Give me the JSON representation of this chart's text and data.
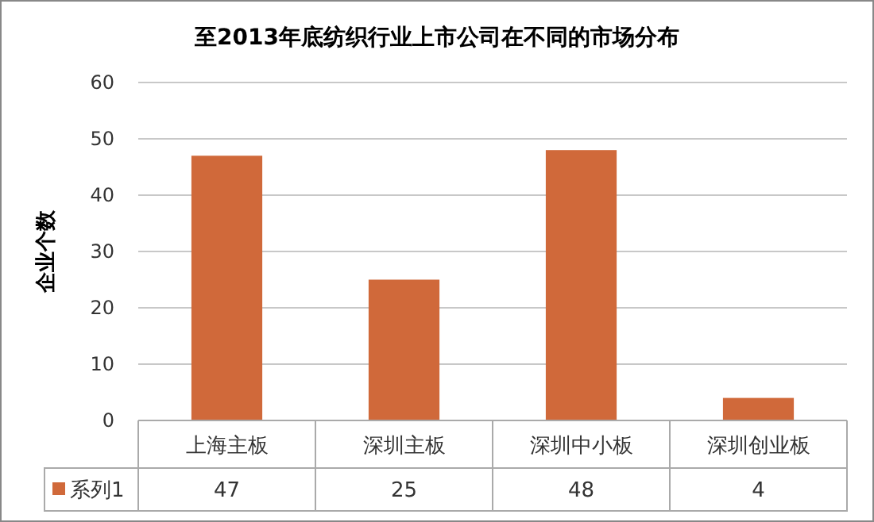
{
  "chart_data": {
    "type": "bar",
    "title": "至2013年底纺织行业上市公司在不同的市场分布",
    "ylabel": "企业个数",
    "categories": [
      "上海主板",
      "深圳主板",
      "深圳中小板",
      "深圳创业板"
    ],
    "series": [
      {
        "name": "系列1",
        "color": "#d0693a",
        "values": [
          47,
          25,
          48,
          4
        ]
      }
    ],
    "ylim": [
      0,
      60
    ],
    "yticks": [
      0,
      10,
      20,
      30,
      40,
      50,
      60
    ],
    "grid": "y",
    "data_labels": true,
    "legend": "bottom"
  }
}
